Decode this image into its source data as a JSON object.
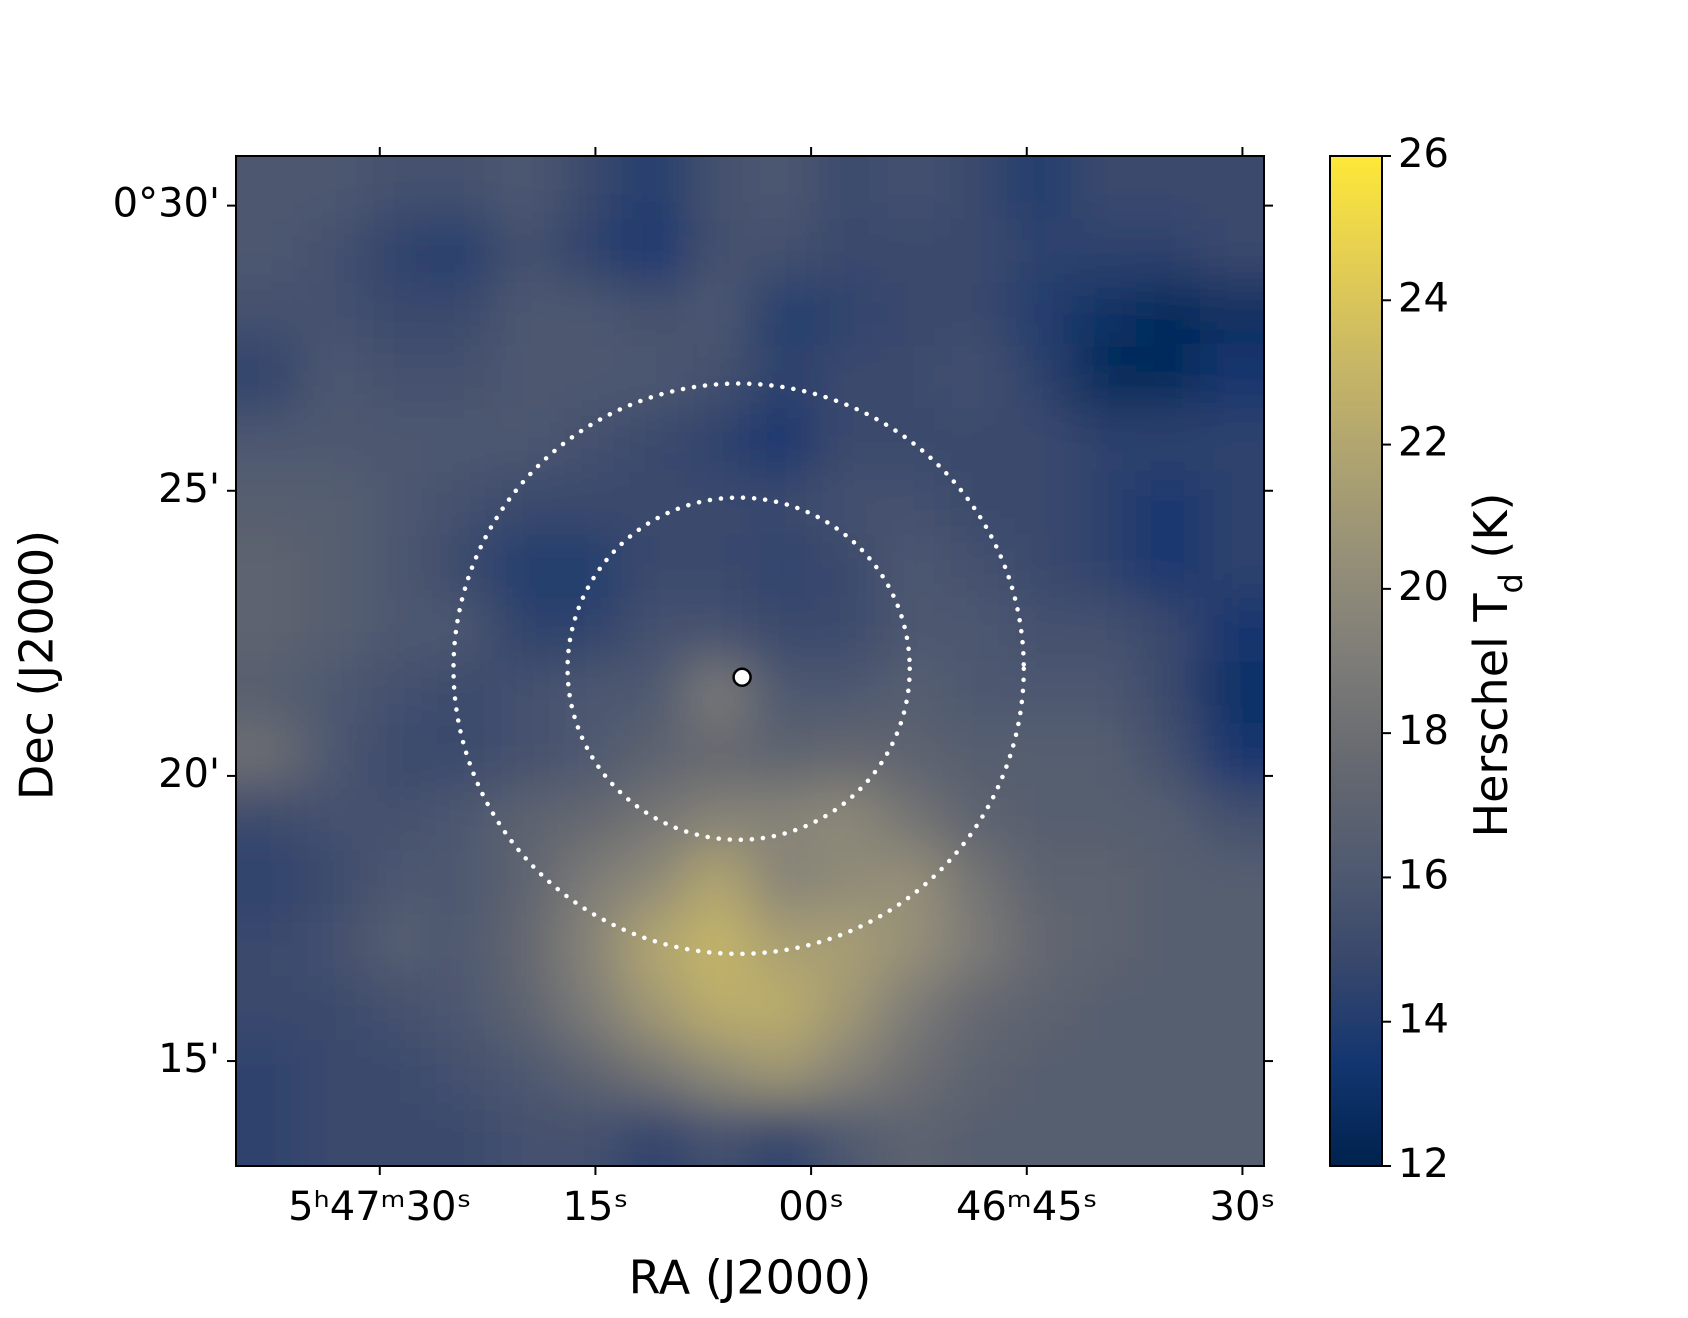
{
  "chart_data": {
    "type": "image",
    "xlabel": "RA (J2000)",
    "ylabel": "Dec (J2000)",
    "colormap": "cividis",
    "xlim": [
      20860,
      20788.5
    ],
    "xticks": [
      {
        "value": 20850,
        "label": "5ʰ47ᵐ30ˢ"
      },
      {
        "value": 20835,
        "label": "15ˢ"
      },
      {
        "value": 20820,
        "label": "00ˢ"
      },
      {
        "value": 20805,
        "label": "46ᵐ45ˢ"
      },
      {
        "value": 20790,
        "label": "30ˢ"
      }
    ],
    "ylim": [
      13.16,
      30.87
    ],
    "yticks": [
      {
        "value": 30,
        "label": "0°30'"
      },
      {
        "value": 25,
        "label": "25'"
      },
      {
        "value": 20,
        "label": "20'"
      },
      {
        "value": 15,
        "label": "15'"
      }
    ],
    "colorbar_label": [
      "Herschel T",
      "d",
      " (K)"
    ],
    "clim": [
      12,
      26
    ],
    "cticks": [
      12,
      14,
      16,
      18,
      20,
      22,
      24,
      26
    ],
    "z": [
      [
        16,
        16,
        15.5,
        15.5,
        16,
        15,
        14,
        15.5,
        16,
        15,
        15.5,
        15,
        14,
        15,
        15,
        15
      ],
      [
        16,
        15.5,
        14.5,
        14,
        15.5,
        14.5,
        13.5,
        15.5,
        15.5,
        15,
        15,
        15,
        14.5,
        14.5,
        14.5,
        15
      ],
      [
        15.5,
        15.5,
        15,
        15,
        16,
        16,
        15.5,
        16,
        14,
        14.5,
        15,
        15,
        14,
        13,
        12.5,
        12.8
      ],
      [
        14.5,
        16,
        15.5,
        15.5,
        16,
        16,
        16,
        15.5,
        14.5,
        15,
        15,
        15.5,
        14.5,
        12.5,
        12.5,
        13.5
      ],
      [
        16,
        16,
        16,
        16,
        16,
        15.5,
        15,
        14.5,
        13.5,
        15,
        15,
        15,
        15,
        14.5,
        14.5,
        14.5
      ],
      [
        16.5,
        16.5,
        16,
        15.5,
        15,
        15,
        15,
        15,
        15,
        15.5,
        15.5,
        15,
        15,
        14.5,
        13.5,
        14.5
      ],
      [
        17,
        16.5,
        16,
        15,
        14,
        14,
        15,
        15,
        14.5,
        15,
        16,
        15.5,
        15,
        14.5,
        13.5,
        14.5
      ],
      [
        17,
        16.5,
        16,
        16,
        14.5,
        14.5,
        15.5,
        15.5,
        15,
        15,
        16,
        16,
        15.5,
        15.5,
        15,
        13.5
      ],
      [
        16.5,
        16,
        15.5,
        15,
        15.5,
        16,
        16,
        19,
        16,
        16,
        16.5,
        16,
        16,
        16,
        15,
        13
      ],
      [
        18,
        16,
        15,
        15,
        15.5,
        16,
        17,
        17.5,
        17,
        17.5,
        17,
        16.5,
        16.5,
        16.5,
        15.5,
        13.5
      ],
      [
        15,
        15.5,
        15.5,
        16,
        17,
        17.5,
        18.5,
        19.5,
        19.5,
        20,
        18.5,
        17,
        16.5,
        16.5,
        16.5,
        15.5
      ],
      [
        14.5,
        15,
        16,
        16,
        17,
        19,
        20,
        22,
        19.5,
        20,
        20.5,
        18.5,
        17,
        17,
        16.5,
        16.5
      ],
      [
        15,
        15.5,
        16.5,
        16,
        17.5,
        19.5,
        22,
        23,
        21.5,
        21.5,
        20.5,
        19,
        17.5,
        17,
        16.5,
        16.5
      ],
      [
        15,
        15,
        15.5,
        16,
        17,
        19,
        21,
        22.5,
        22.5,
        21,
        19,
        17.5,
        17,
        16.5,
        16.5,
        16.5
      ],
      [
        14.5,
        15,
        15,
        15.5,
        16,
        17,
        18.5,
        20,
        21,
        19.5,
        18,
        17,
        16.5,
        16.5,
        16.5,
        16.5
      ],
      [
        14.5,
        15,
        15,
        15,
        15.5,
        15.5,
        14.5,
        15.5,
        14.5,
        16,
        17,
        16.5,
        16.5,
        16.5,
        16.5,
        16.5
      ]
    ],
    "regions": [
      {
        "ra": 20825.04,
        "dec": 21.88,
        "radius": 5
      },
      {
        "ra": 20825.04,
        "dec": 21.88,
        "radius": 3
      }
    ],
    "source": {
      "ra": 20824.8,
      "dec": 21.73
    }
  }
}
